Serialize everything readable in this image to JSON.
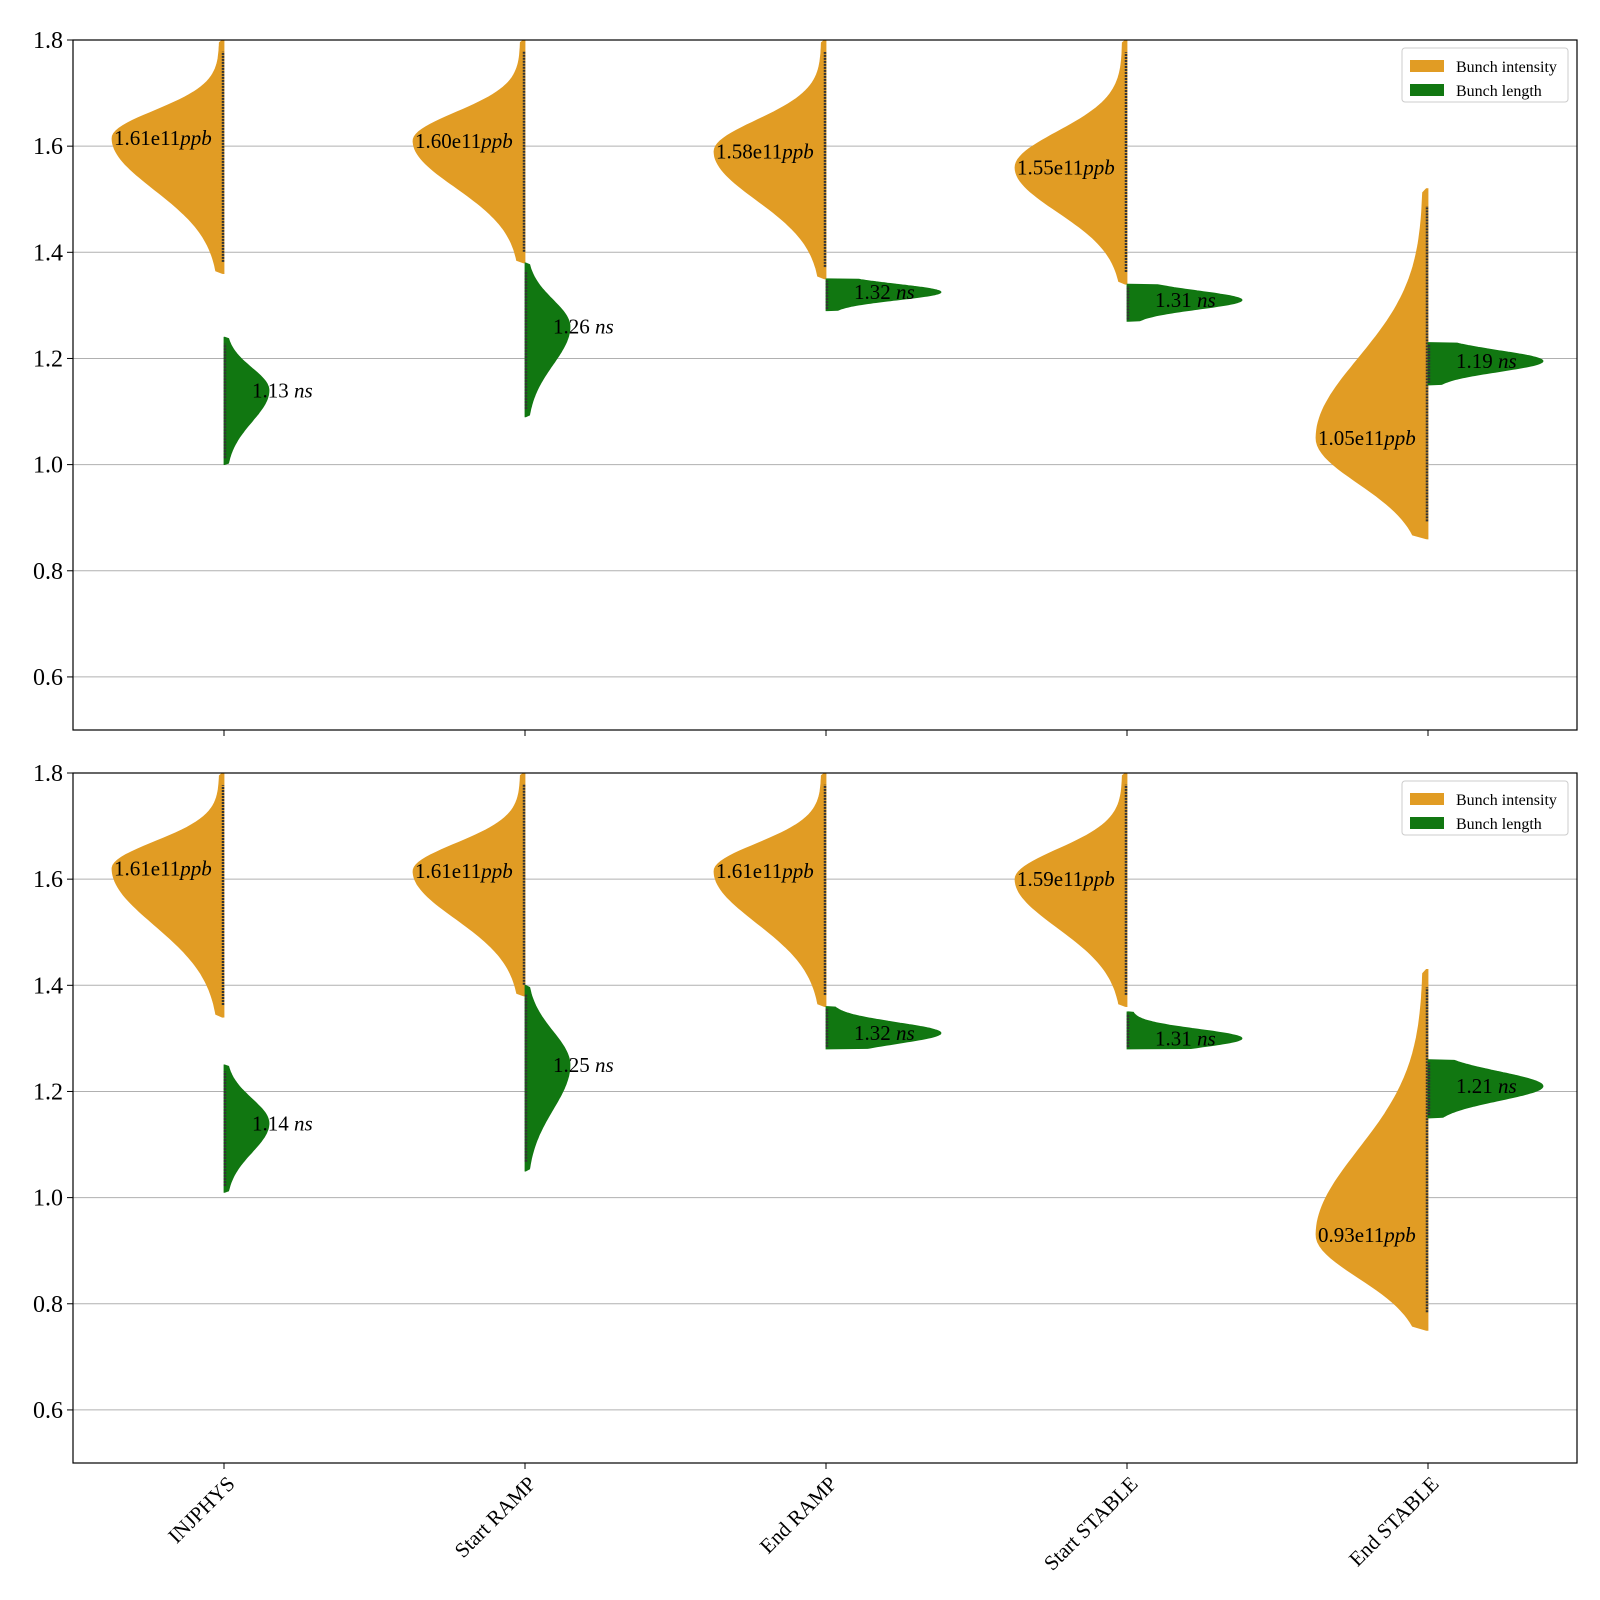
{
  "colors": {
    "intensity": "#E19C24",
    "length": "#117711",
    "grid": "#b0b0b0",
    "axis": "#000000",
    "strip": "#333333"
  },
  "legend": [
    "Bunch intensity",
    "Bunch length"
  ],
  "chart_data": [
    {
      "type": "violin",
      "ylim": [
        0.5,
        1.8
      ],
      "yticks": [
        "0.6",
        "0.8",
        "1.0",
        "1.2",
        "1.4",
        "1.6",
        "1.8"
      ],
      "categories": [
        "INJPHYS",
        "Start RAMP",
        "End RAMP",
        "Start STABLE",
        "End STABLE"
      ],
      "grid": "horizontal",
      "legend_position": "top-right",
      "series": [
        {
          "name": "Bunch intensity",
          "side": "left",
          "violins": [
            {
              "range": [
                1.36,
                1.8
              ],
              "mode": 1.615,
              "shape": "upper"
            },
            {
              "range": [
                1.38,
                1.8
              ],
              "mode": 1.61,
              "shape": "upper"
            },
            {
              "range": [
                1.35,
                1.8
              ],
              "mode": 1.59,
              "shape": "upper"
            },
            {
              "range": [
                1.34,
                1.8
              ],
              "mode": 1.56,
              "shape": "upper"
            },
            {
              "range": [
                0.86,
                1.52
              ],
              "mode": 1.05,
              "shape": "lower"
            }
          ],
          "labels": [
            {
              "num": "1.61e11",
              "unit": "ppb"
            },
            {
              "num": "1.60e11",
              "unit": "ppb"
            },
            {
              "num": "1.58e11",
              "unit": "ppb"
            },
            {
              "num": "1.55e11",
              "unit": "ppb"
            },
            {
              "num": "1.05e11",
              "unit": "ppb"
            }
          ]
        },
        {
          "name": "Bunch length",
          "side": "right",
          "violins": [
            {
              "range": [
                1.0,
                1.24
              ],
              "mode": 1.14,
              "shape": "sym"
            },
            {
              "range": [
                1.09,
                1.38
              ],
              "mode": 1.26,
              "shape": "sym"
            },
            {
              "range": [
                1.29,
                1.35
              ],
              "mode": 1.325,
              "shape": "skew"
            },
            {
              "range": [
                1.27,
                1.34
              ],
              "mode": 1.31,
              "shape": "skew"
            },
            {
              "range": [
                1.15,
                1.23
              ],
              "mode": 1.195,
              "shape": "skew"
            }
          ],
          "labels": [
            {
              "num": "1.13",
              "unit": "ns"
            },
            {
              "num": "1.26",
              "unit": "ns"
            },
            {
              "num": "1.32",
              "unit": "ns"
            },
            {
              "num": "1.31",
              "unit": "ns"
            },
            {
              "num": "1.19",
              "unit": "ns"
            }
          ]
        }
      ]
    },
    {
      "type": "violin",
      "ylim": [
        0.5,
        1.8
      ],
      "yticks": [
        "0.6",
        "0.8",
        "1.0",
        "1.2",
        "1.4",
        "1.6",
        "1.8"
      ],
      "categories": [
        "INJPHYS",
        "Start RAMP",
        "End RAMP",
        "Start STABLE",
        "End STABLE"
      ],
      "grid": "horizontal",
      "legend_position": "top-right",
      "series": [
        {
          "name": "Bunch intensity",
          "side": "left",
          "violins": [
            {
              "range": [
                1.34,
                1.8
              ],
              "mode": 1.62,
              "shape": "upper"
            },
            {
              "range": [
                1.38,
                1.8
              ],
              "mode": 1.615,
              "shape": "upper"
            },
            {
              "range": [
                1.36,
                1.8
              ],
              "mode": 1.615,
              "shape": "upper"
            },
            {
              "range": [
                1.36,
                1.8
              ],
              "mode": 1.6,
              "shape": "upper"
            },
            {
              "range": [
                0.75,
                1.43
              ],
              "mode": 0.93,
              "shape": "lower"
            }
          ],
          "labels": [
            {
              "num": "1.61e11",
              "unit": "ppb"
            },
            {
              "num": "1.61e11",
              "unit": "ppb"
            },
            {
              "num": "1.61e11",
              "unit": "ppb"
            },
            {
              "num": "1.59e11",
              "unit": "ppb"
            },
            {
              "num": "0.93e11",
              "unit": "ppb"
            }
          ]
        },
        {
          "name": "Bunch length",
          "side": "right",
          "violins": [
            {
              "range": [
                1.01,
                1.25
              ],
              "mode": 1.14,
              "shape": "sym"
            },
            {
              "range": [
                1.05,
                1.4
              ],
              "mode": 1.25,
              "shape": "sym"
            },
            {
              "range": [
                1.28,
                1.36
              ],
              "mode": 1.31,
              "shape": "skew"
            },
            {
              "range": [
                1.28,
                1.35
              ],
              "mode": 1.3,
              "shape": "skew"
            },
            {
              "range": [
                1.15,
                1.26
              ],
              "mode": 1.21,
              "shape": "skew"
            }
          ],
          "labels": [
            {
              "num": "1.14",
              "unit": "ns"
            },
            {
              "num": "1.25",
              "unit": "ns"
            },
            {
              "num": "1.32",
              "unit": "ns"
            },
            {
              "num": "1.31",
              "unit": "ns"
            },
            {
              "num": "1.21",
              "unit": "ns"
            }
          ]
        }
      ]
    }
  ]
}
